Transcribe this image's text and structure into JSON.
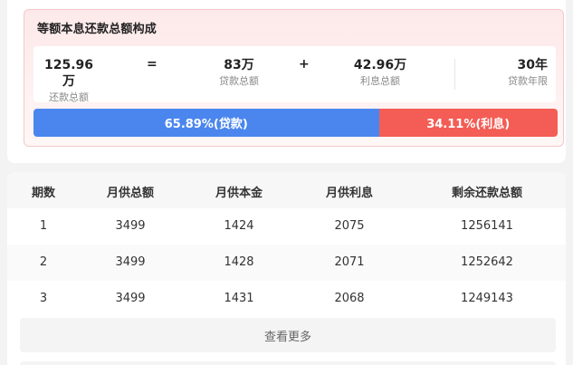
{
  "composition": {
    "title": "等额本息还款总额构成",
    "total": {
      "value": "125.96万",
      "label": "还款总额"
    },
    "equals": "=",
    "loan": {
      "value": "83万",
      "label": "贷款总额"
    },
    "plus": "+",
    "interest": {
      "value": "42.96万",
      "label": "利息总额"
    },
    "years": {
      "value": "30年",
      "label": "贷款年限"
    }
  },
  "ratio": {
    "loan": {
      "label": "65.89%(贷款)",
      "percent": 65.89,
      "color": "#4a86ee"
    },
    "interest": {
      "label": "34.11%(利息)",
      "percent": 34.11,
      "color": "#f45d55"
    }
  },
  "schedule": {
    "headers": [
      "期数",
      "月供总额",
      "月供本金",
      "月供利息",
      "剩余还款总额"
    ],
    "rows": [
      [
        "1",
        "3499",
        "1424",
        "2075",
        "1256141"
      ],
      [
        "2",
        "3499",
        "1428",
        "2071",
        "1252642"
      ],
      [
        "3",
        "3499",
        "1431",
        "2068",
        "1249143"
      ]
    ],
    "more_label": "查看更多"
  }
}
